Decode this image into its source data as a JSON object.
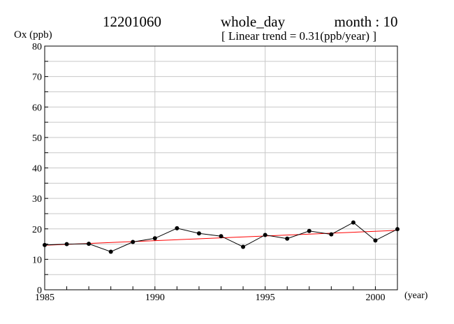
{
  "header": {
    "station": "12201060",
    "period": "whole_day",
    "month": "month : 10",
    "subtitle": "[ Linear trend = 0.31(ppb/year) ]"
  },
  "chart_data": {
    "type": "line",
    "ylabel": "Ox (ppb)",
    "xlabel": "(year)",
    "xlim": [
      1985,
      2001
    ],
    "ylim": [
      0,
      80
    ],
    "x_ticks": [
      1985,
      1990,
      1995,
      2000
    ],
    "y_ticks": [
      0,
      10,
      20,
      30,
      40,
      50,
      60,
      70,
      80
    ],
    "grid": true,
    "series": [
      {
        "x": [
          1985,
          1986,
          1987,
          1988,
          1989,
          1990,
          1991,
          1992,
          1993,
          1994,
          1995,
          1996,
          1997,
          1998,
          1999,
          2000,
          2001
        ],
        "values": [
          14.7,
          15.0,
          15.1,
          12.5,
          15.7,
          16.9,
          20.2,
          18.5,
          17.6,
          14.1,
          18.0,
          16.8,
          19.3,
          18.2,
          22.1,
          16.2,
          19.9
        ],
        "color": "#000000",
        "marker": "circle"
      }
    ],
    "trend_line": {
      "x": [
        1985,
        2001
      ],
      "y": [
        14.6,
        19.5
      ],
      "color": "#ff0000"
    }
  }
}
